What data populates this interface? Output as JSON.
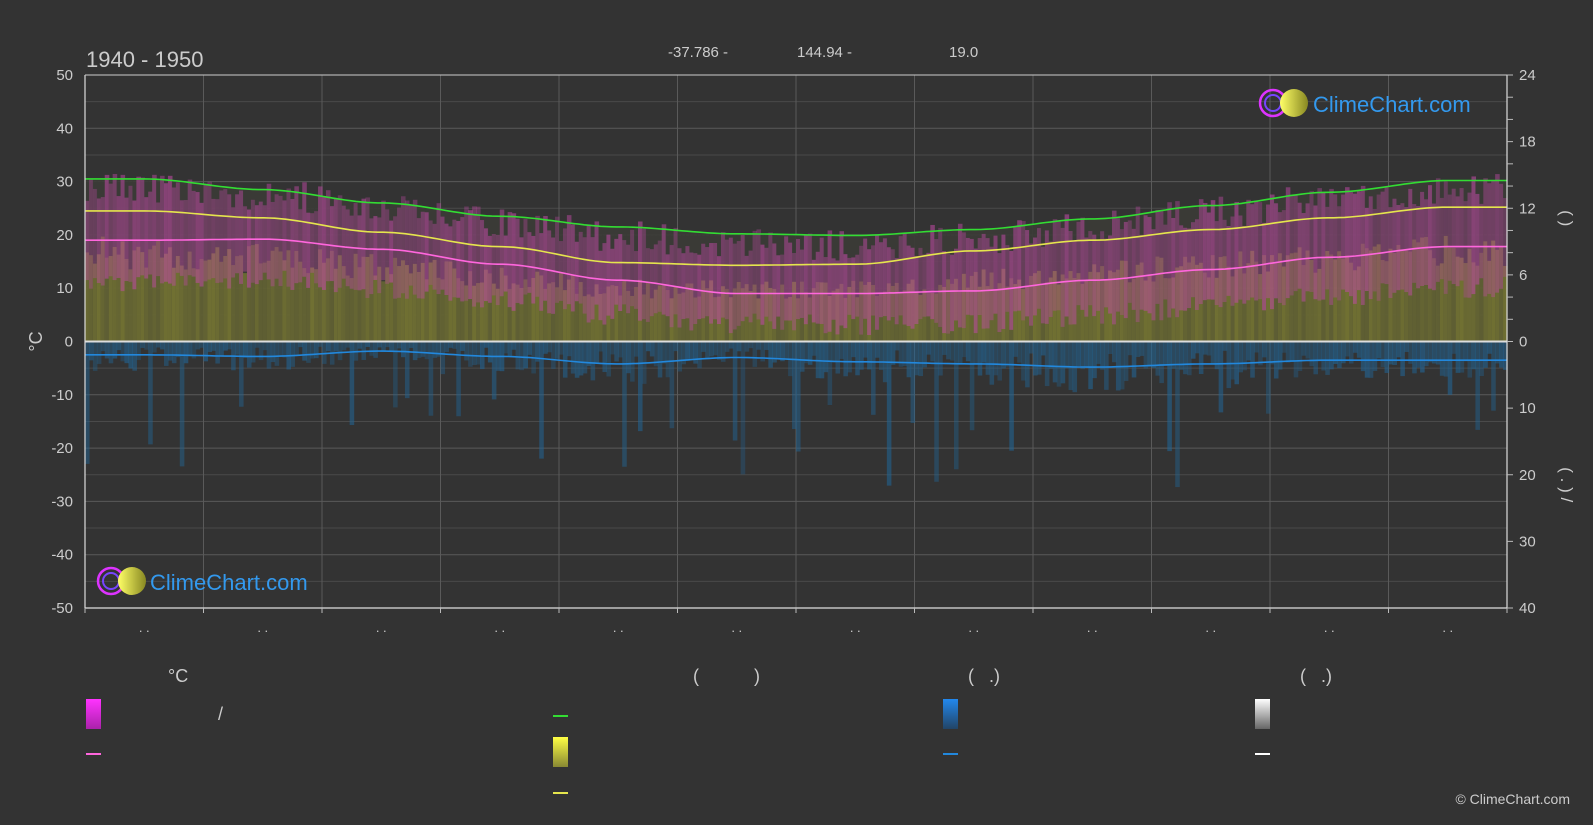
{
  "header": {
    "period": "1940 - 1950",
    "lat": "-37.786 -",
    "lon": "144.94 -",
    "elev": "19.0"
  },
  "logo": {
    "text": "ClimeChart.com"
  },
  "copyright": "© ClimeChart.com",
  "chart_data": {
    "type": "area",
    "x": [
      1,
      2,
      3,
      4,
      5,
      6,
      7,
      8,
      9,
      10,
      11,
      12
    ],
    "x_tick_labels": [
      ". .",
      ". .",
      ". .",
      ". .",
      ". .",
      ". .",
      ". .",
      ". .",
      ". .",
      ". .",
      ". .",
      ". ."
    ],
    "ylabel": "°C",
    "ylabel_right_top": "(     )",
    "ylabel_right_bottom": "(  .  )        /",
    "ylim": [
      -50,
      50
    ],
    "yticks": [
      50,
      40,
      30,
      20,
      10,
      0,
      -10,
      -20,
      -30,
      -40,
      -50
    ],
    "ylim_right": [
      0,
      24
    ],
    "yticks_right_top": [
      24,
      18,
      12,
      6,
      0
    ],
    "yticks_right_bottom": [
      10,
      20,
      30,
      40
    ],
    "grid": true,
    "series": [
      {
        "key": "daylight",
        "color": "#33dd33",
        "values": [
          30.5,
          28.5,
          26.0,
          23.5,
          21.5,
          20.2,
          19.9,
          21.0,
          23.0,
          25.5,
          28.0,
          30.2
        ]
      },
      {
        "key": "sunshine",
        "color": "#e5e54d",
        "values": [
          24.5,
          23.2,
          20.5,
          17.8,
          14.8,
          14.3,
          14.5,
          17.0,
          19.0,
          21.0,
          23.2,
          25.2
        ]
      },
      {
        "key": "temp_mean",
        "color": "#ff66dd",
        "values": [
          19.0,
          19.2,
          17.3,
          14.5,
          11.5,
          9.0,
          9.0,
          9.5,
          11.5,
          13.5,
          15.8,
          17.8
        ]
      },
      {
        "key": "precip",
        "color": "#2288dd",
        "values": [
          -2.5,
          -2.8,
          -1.8,
          -2.8,
          -4.2,
          -3.0,
          -3.8,
          -4.2,
          -4.8,
          -4.2,
          -3.5,
          -3.5
        ]
      },
      {
        "key": "temp_max_avg",
        "color": "#cc33cc",
        "values": [
          27.5,
          26.5,
          24.5,
          21.5,
          18.5,
          17.0,
          17.0,
          18.0,
          20.5,
          23.0,
          25.5,
          27.5
        ]
      },
      {
        "key": "temp_min_avg",
        "color": "#dd55aa",
        "values": [
          13.0,
          13.5,
          12.0,
          9.5,
          7.0,
          5.5,
          5.0,
          5.5,
          7.0,
          8.5,
          10.5,
          12.0
        ]
      }
    ]
  },
  "legend": {
    "col1": {
      "header": "°C",
      "item1": "/",
      "item2": ""
    },
    "col2": {
      "header": "(           )",
      "item1": "",
      "item2": "",
      "item3": ""
    },
    "col3": {
      "header": "(   .)",
      "item1": "",
      "item2": ""
    },
    "col4": {
      "header": "(   .)",
      "item1": "",
      "item2": ""
    },
    "colors": {
      "temp_range_top": "#ff33ff",
      "temp_range_bottom": "#aa22aa",
      "temp_mean": "#ff66dd",
      "daylight": "#33dd33",
      "sunshine_top": "#ffff44",
      "sunshine_bottom": "#888833",
      "sunshine_line": "#e5e54d",
      "rain_top": "#2288ee",
      "rain_bottom": "#224466",
      "rain_line": "#2288dd",
      "snow_top": "#ffffff",
      "snow_bottom": "#666666",
      "snow_line": "#ffffff"
    }
  }
}
